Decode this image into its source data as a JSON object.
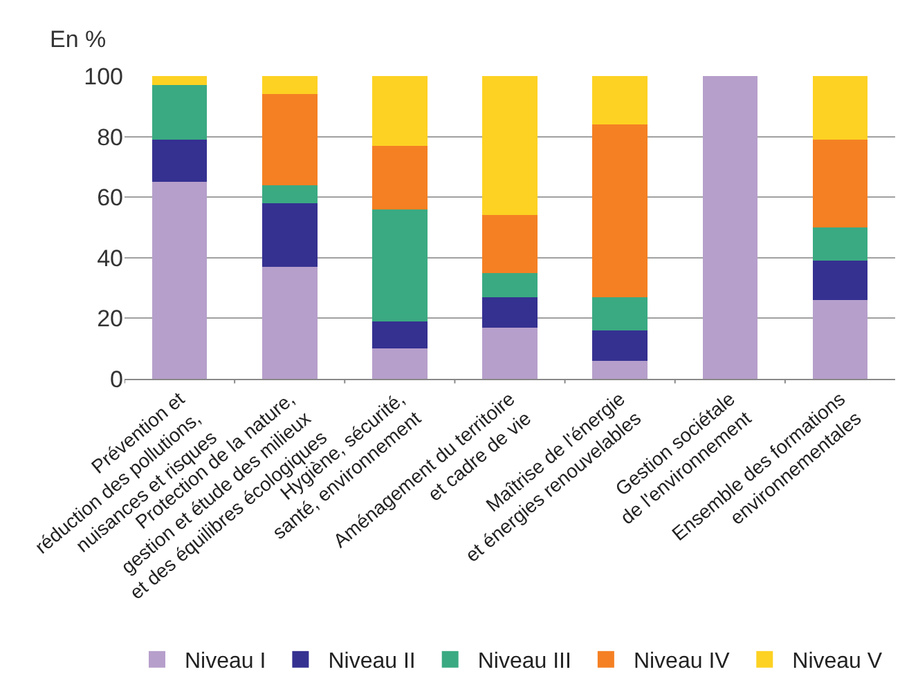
{
  "chart_data": {
    "type": "bar",
    "stacked": true,
    "ylabel": "En %",
    "ylim": [
      0,
      100
    ],
    "yticks": [
      0,
      20,
      40,
      60,
      80,
      100
    ],
    "grid": "y",
    "legend": "bottom",
    "categories": [
      "Prévention et\nréduction des pollutions,\nnuisances et risques",
      "Protection de la nature,\ngestion et étude des milieux\net des équilibres écologiques",
      "Hygiène, sécurité,\nsanté, environnement",
      "Aménagement du territoire\net cadre de vie",
      "Maîtrise de l'énergie\net énergies renouvelables",
      "Gestion sociétale\nde l'environnement",
      "Ensemble des formations\nenvironnementales"
    ],
    "series": [
      {
        "name": "Niveau I",
        "color": "#b69fcb",
        "values": [
          65,
          37,
          10,
          17,
          6,
          100,
          26
        ]
      },
      {
        "name": "Niveau II",
        "color": "#353191",
        "values": [
          14,
          21,
          9,
          10,
          10,
          0,
          13
        ]
      },
      {
        "name": "Niveau III",
        "color": "#3aaa82",
        "values": [
          18,
          6,
          37,
          8,
          11,
          0,
          11
        ]
      },
      {
        "name": "Niveau IV",
        "color": "#f58023",
        "values": [
          0,
          30,
          21,
          19,
          57,
          0,
          29
        ]
      },
      {
        "name": "Niveau V",
        "color": "#fdd223",
        "values": [
          3,
          6,
          23,
          46,
          16,
          0,
          21
        ]
      }
    ]
  }
}
